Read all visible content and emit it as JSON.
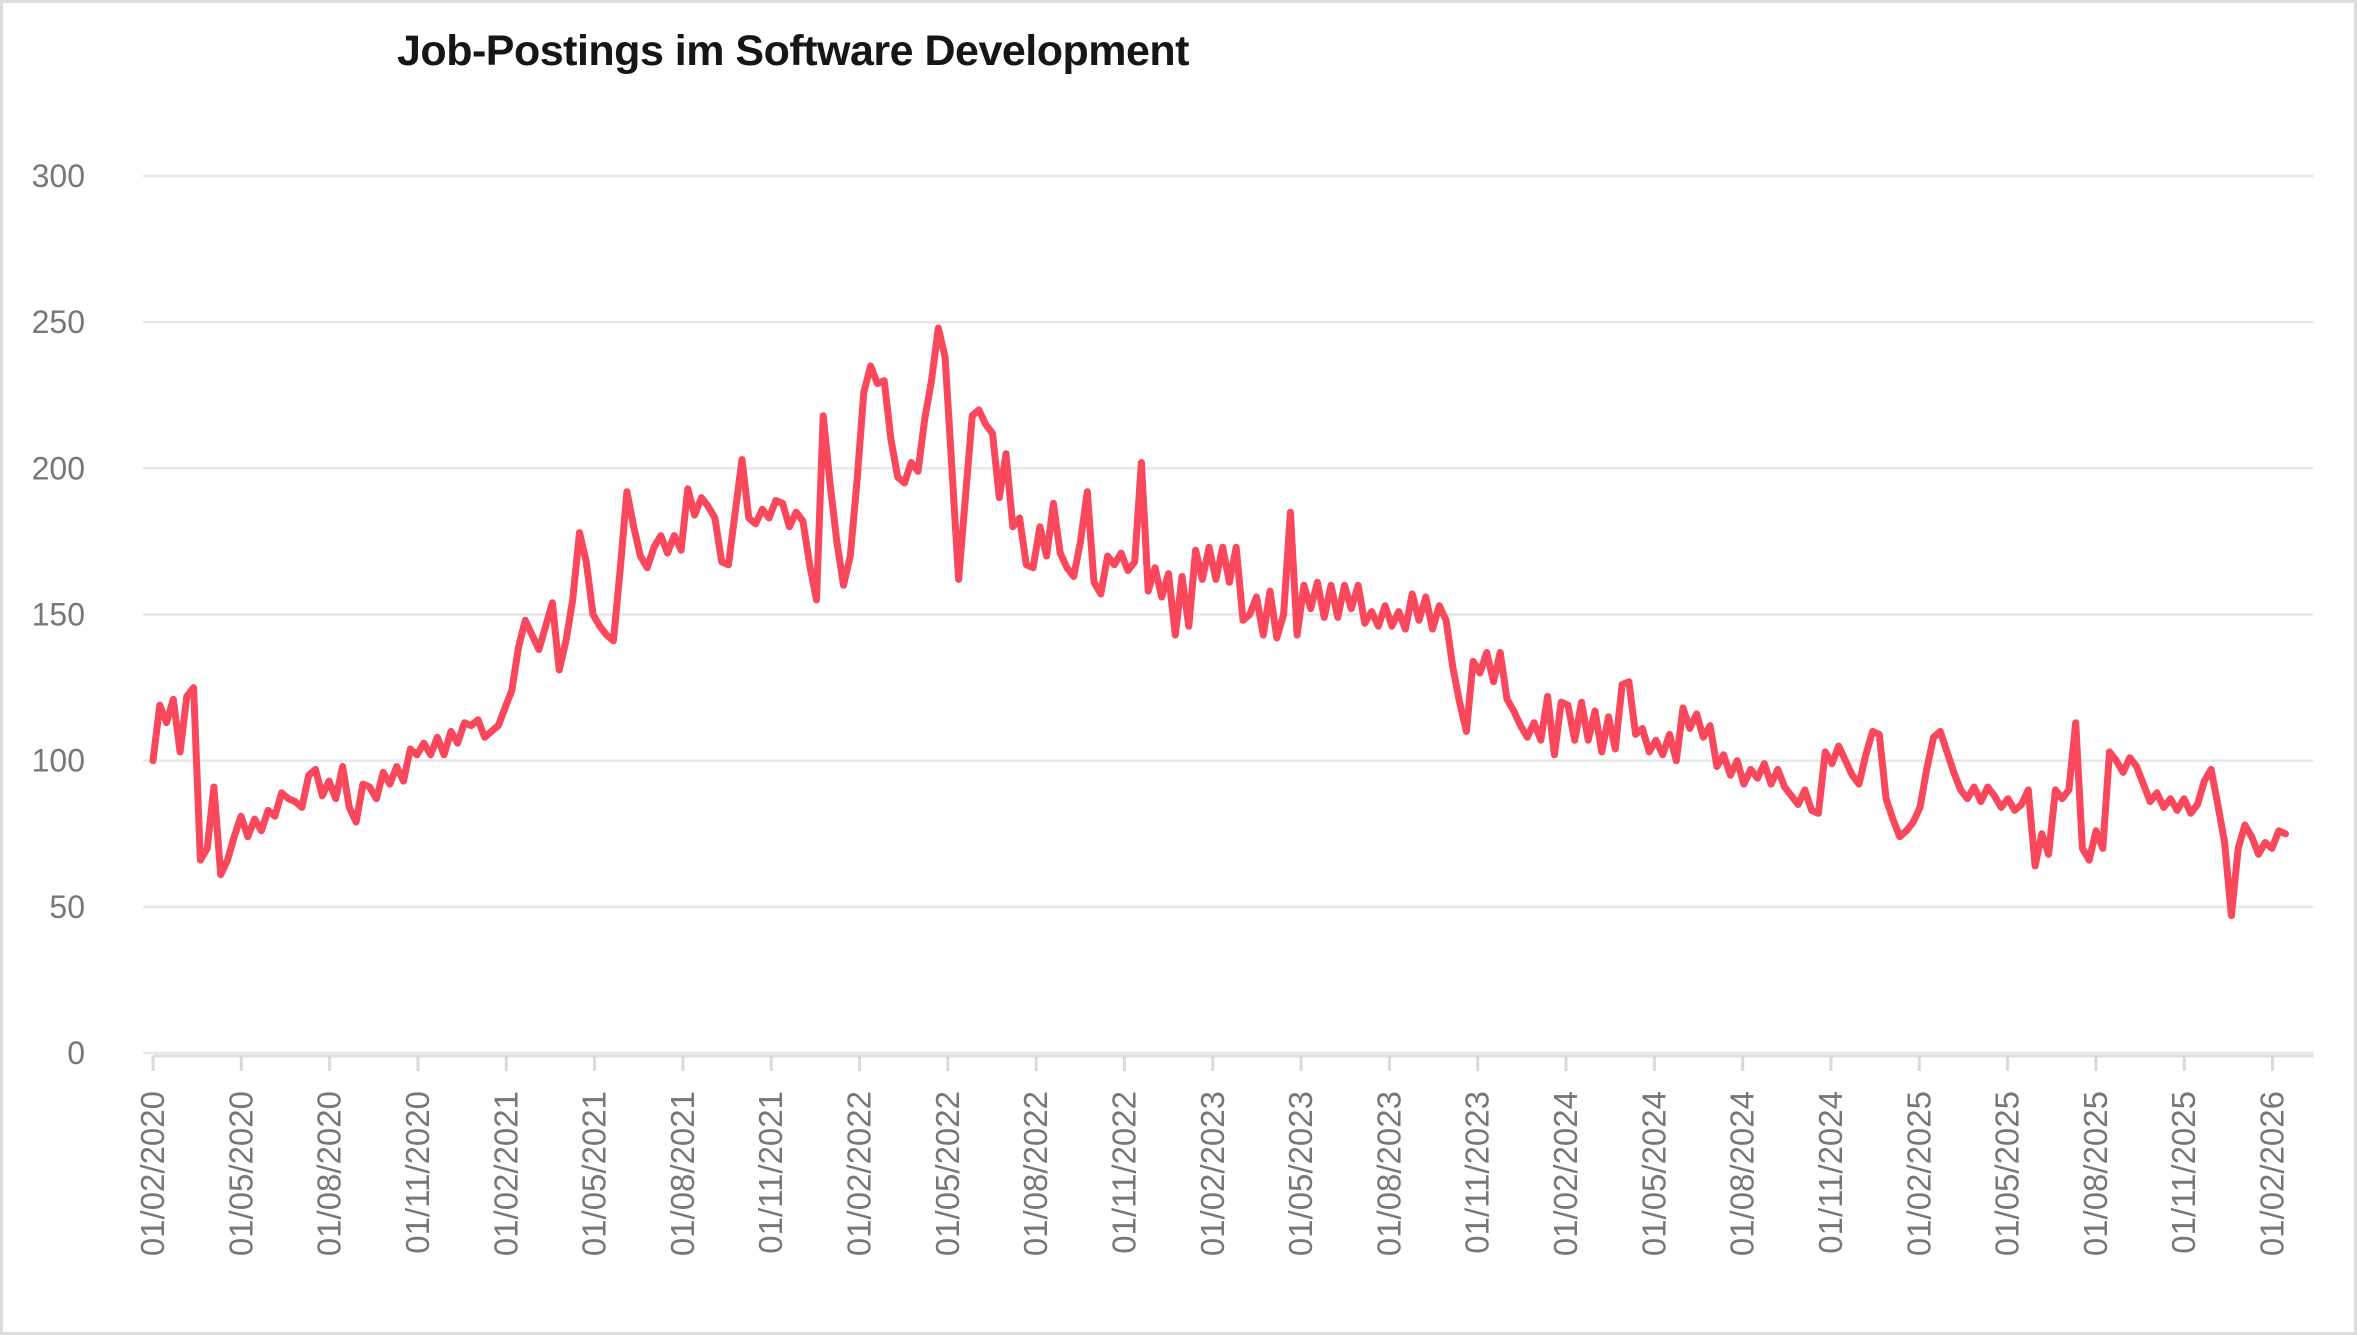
{
  "page": {
    "background": "#ffffff",
    "frame_border_color": "#dcdcdc"
  },
  "chart_data": {
    "type": "line",
    "title": "Job-Postings im Software Development",
    "xlabel": "",
    "ylabel": "",
    "x": {
      "start_label": "01/02/2020",
      "interval": "weekly",
      "tick_labels": [
        "01/02/2020",
        "01/05/2020",
        "01/08/2020",
        "01/11/2020",
        "01/02/2021",
        "01/05/2021",
        "01/08/2021",
        "01/11/2021",
        "01/02/2022",
        "01/05/2022",
        "01/08/2022",
        "01/11/2022",
        "01/02/2023",
        "01/05/2023",
        "01/08/2023",
        "01/11/2023",
        "01/02/2024",
        "01/05/2024",
        "01/08/2024",
        "01/11/2024",
        "01/02/2025",
        "01/05/2025",
        "01/08/2025",
        "01/11/2025",
        "01/02/2026"
      ]
    },
    "y": {
      "min": 0,
      "max": 300,
      "tick_step": 50,
      "tick_labels": [
        "0",
        "50",
        "100",
        "150",
        "200",
        "250",
        "300"
      ]
    },
    "layout": {
      "grid": true,
      "legend": false,
      "x_labels_rotated_90": true
    },
    "series": [
      {
        "name": "Job-Postings",
        "color": "#f9475c",
        "stroke_width": 7,
        "values": [
          100,
          119,
          113,
          121,
          103,
          122,
          125,
          66,
          70,
          91,
          61,
          66,
          74,
          81,
          74,
          80,
          76,
          83,
          81,
          89,
          87,
          86,
          84,
          95,
          97,
          88,
          93,
          87,
          98,
          84,
          79,
          92,
          91,
          87,
          96,
          92,
          98,
          93,
          104,
          102,
          106,
          102,
          108,
          102,
          110,
          106,
          113,
          112,
          114,
          108,
          110,
          112,
          118,
          124,
          139,
          148,
          143,
          138,
          146,
          154,
          131,
          141,
          155,
          178,
          168,
          150,
          146,
          143,
          141,
          165,
          192,
          180,
          170,
          166,
          173,
          177,
          171,
          177,
          172,
          193,
          184,
          190,
          187,
          183,
          168,
          167,
          185,
          203,
          183,
          181,
          186,
          183,
          189,
          188,
          180,
          185,
          182,
          167,
          155,
          218,
          195,
          175,
          160,
          170,
          196,
          226,
          235,
          229,
          230,
          210,
          197,
          195,
          202,
          199,
          217,
          230,
          248,
          238,
          200,
          162,
          190,
          218,
          220,
          215,
          212,
          190,
          205,
          180,
          183,
          167,
          166,
          180,
          170,
          188,
          171,
          166,
          163,
          175,
          192,
          161,
          157,
          170,
          167,
          171,
          165,
          168,
          202,
          158,
          166,
          156,
          164,
          143,
          163,
          146,
          172,
          162,
          173,
          162,
          173,
          161,
          173,
          148,
          150,
          156,
          143,
          158,
          142,
          150,
          185,
          143,
          160,
          152,
          161,
          149,
          160,
          149,
          160,
          152,
          160,
          147,
          151,
          146,
          153,
          146,
          151,
          145,
          157,
          148,
          156,
          145,
          153,
          148,
          132,
          120,
          110,
          134,
          130,
          137,
          127,
          137,
          121,
          117,
          112,
          108,
          113,
          107,
          122,
          102,
          120,
          119,
          107,
          120,
          107,
          117,
          103,
          115,
          104,
          126,
          127,
          109,
          111,
          103,
          107,
          102,
          109,
          100,
          118,
          111,
          116,
          108,
          112,
          98,
          102,
          95,
          100,
          92,
          97,
          94,
          99,
          92,
          97,
          91,
          88,
          85,
          90,
          83,
          82,
          103,
          99,
          105,
          100,
          95,
          92,
          102,
          110,
          109,
          87,
          80,
          74,
          76,
          79,
          84,
          97,
          108,
          110,
          103,
          96,
          90,
          87,
          91,
          86,
          91,
          88,
          84,
          87,
          83,
          85,
          90,
          64,
          75,
          68,
          90,
          87,
          90,
          113,
          70,
          66,
          76,
          70,
          103,
          100,
          96,
          101,
          98,
          92,
          86,
          89,
          84,
          87,
          83,
          87,
          82,
          85,
          93,
          97,
          85,
          72,
          47,
          70,
          78,
          74,
          68,
          72,
          70,
          76,
          75
        ]
      }
    ]
  }
}
